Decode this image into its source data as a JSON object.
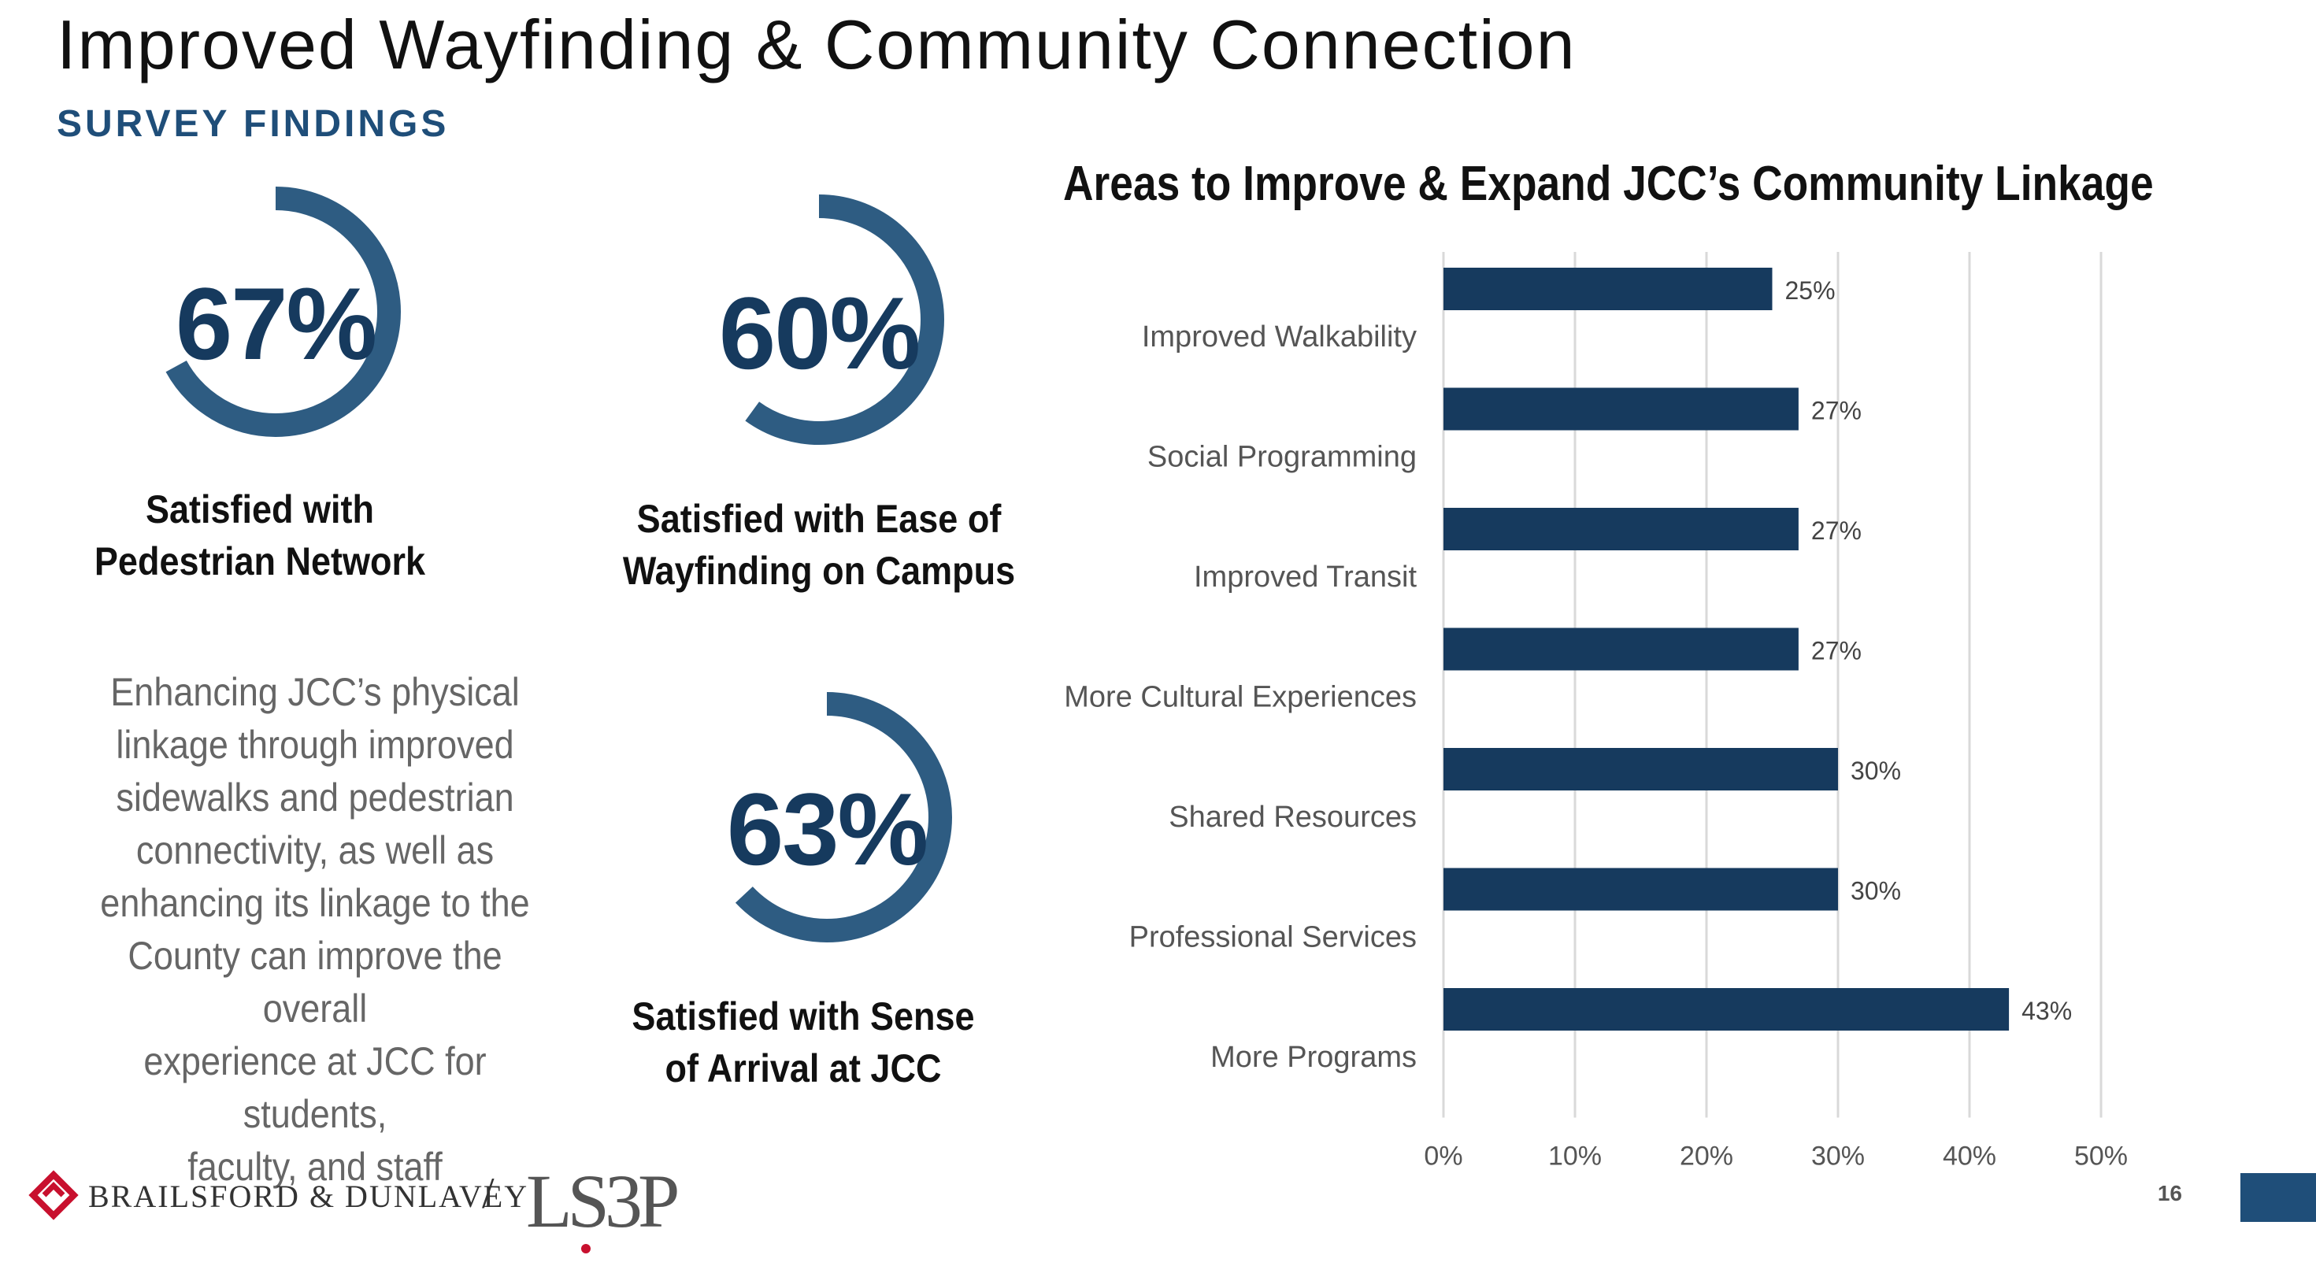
{
  "header": {
    "title": "Improved Wayfinding & Community Connection",
    "subtitle": "SURVEY FINDINGS"
  },
  "stats": [
    {
      "value": "67%",
      "label_line1": "Satisfied with",
      "label_line2": "Pedestrian Network",
      "fraction": 0.67
    },
    {
      "value": "60%",
      "label_line1": "Satisfied with Ease of",
      "label_line2": "Wayfinding on Campus",
      "fraction": 0.6
    },
    {
      "value": "63%",
      "label_line1": "Satisfied with Sense",
      "label_line2": "of Arrival at JCC",
      "fraction": 0.63
    }
  ],
  "body_text": {
    "lines": [
      "Enhancing JCC’s physical",
      "linkage through improved",
      "sidewalks and pedestrian",
      "connectivity, as well as",
      "enhancing its linkage to the",
      "County can improve the overall",
      "experience at JCC for students,",
      "faculty, and staff"
    ]
  },
  "chart_data": {
    "type": "bar",
    "orientation": "horizontal",
    "title": "Areas to Improve & Expand JCC’s Community Linkage",
    "categories": [
      "Improved Walkability",
      "Social Programming",
      "Improved Transit",
      "More Cultural Experiences",
      "Shared Resources",
      "Professional Services",
      "More Programs"
    ],
    "values": [
      25,
      27,
      27,
      27,
      30,
      30,
      43
    ],
    "data_labels": [
      "25%",
      "27%",
      "27%",
      "27%",
      "30%",
      "30%",
      "43%"
    ],
    "xlim": [
      0,
      50
    ],
    "xticks": [
      "0%",
      "10%",
      "20%",
      "30%",
      "40%",
      "50%"
    ],
    "grid": true,
    "bar_color": "#163a5e"
  },
  "colors": {
    "ring": "#2e5c82",
    "stat_text": "#163a5e",
    "subtitle": "#1f4e79",
    "accent_block": "#1f4e79"
  },
  "footer": {
    "brand_left": "BRAILSFORD & DUNLAVEY",
    "separator": "/",
    "brand_right": "LS3P",
    "page_number": "16"
  }
}
